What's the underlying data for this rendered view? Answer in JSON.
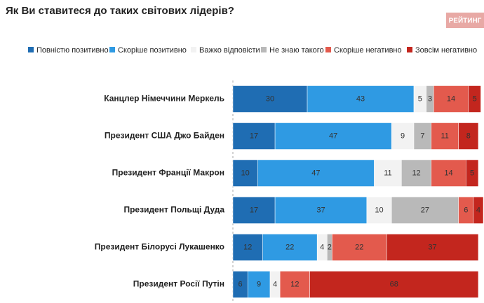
{
  "logo": "РЕЙТИНГ",
  "chart_data": {
    "type": "bar",
    "orientation": "horizontal",
    "stacked": true,
    "title": "Як Ви ставитеся до таких світових лідерів?",
    "categories": [
      "Канцлер Німеччини Меркель",
      "Президент США Джо Байден",
      "Президент Франції Макрон",
      "Президент Польщі Дуда",
      "Президент Білорусі Лукашенко",
      "Президент Росії Путін"
    ],
    "series": [
      {
        "name": "Повністю позитивно",
        "color": "#1f6db3",
        "values": [
          30,
          17,
          10,
          17,
          12,
          6
        ]
      },
      {
        "name": "Скоріше позитивно",
        "color": "#2f9ae3",
        "values": [
          43,
          47,
          47,
          37,
          22,
          9
        ]
      },
      {
        "name": "Важко відповісти",
        "color": "#f2f2f2",
        "values": [
          5,
          9,
          11,
          10,
          4,
          4
        ]
      },
      {
        "name": "Не знаю такого",
        "color": "#b9b9b9",
        "values": [
          3,
          7,
          12,
          27,
          2,
          null
        ]
      },
      {
        "name": "Скоріше негативно",
        "color": "#e35a4d",
        "values": [
          14,
          11,
          14,
          6,
          22,
          12
        ]
      },
      {
        "name": "Зовсім негативно",
        "color": "#c3261e",
        "values": [
          5,
          8,
          5,
          4,
          37,
          68
        ]
      }
    ],
    "xlim": [
      0,
      101
    ]
  }
}
